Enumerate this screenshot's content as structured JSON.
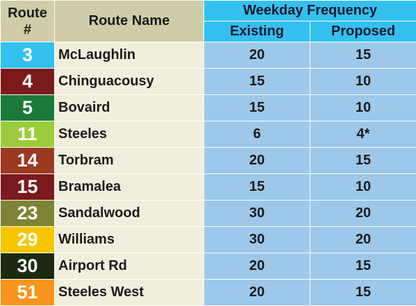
{
  "header": {
    "route_number": "Route\n#",
    "route_name": "Route Name",
    "weekday_frequency": "Weekday Frequency",
    "existing": "Existing",
    "proposed": "Proposed"
  },
  "rows": [
    {
      "route": "3",
      "name": "McLaughlin",
      "existing": "20",
      "proposed": "15",
      "color": "#33c0ef"
    },
    {
      "route": "4",
      "name": "Chinguacousy",
      "existing": "15",
      "proposed": "10",
      "color": "#7b1a1a"
    },
    {
      "route": "5",
      "name": "Bovaird",
      "existing": "15",
      "proposed": "10",
      "color": "#1a7a3c"
    },
    {
      "route": "11",
      "name": "Steeles",
      "existing": "6",
      "proposed": "4*",
      "color": "#9ccc3b"
    },
    {
      "route": "14",
      "name": "Torbram",
      "existing": "20",
      "proposed": "15",
      "color": "#9b3a1f"
    },
    {
      "route": "15",
      "name": "Bramalea",
      "existing": "15",
      "proposed": "10",
      "color": "#7a1a1c"
    },
    {
      "route": "23",
      "name": "Sandalwood",
      "existing": "30",
      "proposed": "20",
      "color": "#7e8235"
    },
    {
      "route": "29",
      "name": "Williams",
      "existing": "30",
      "proposed": "20",
      "color": "#f7c600"
    },
    {
      "route": "30",
      "name": "Airport Rd",
      "existing": "20",
      "proposed": "15",
      "color": "#1c2a12"
    },
    {
      "route": "51",
      "name": "Steeles West",
      "existing": "20",
      "proposed": "15",
      "color": "#f7941d"
    }
  ]
}
